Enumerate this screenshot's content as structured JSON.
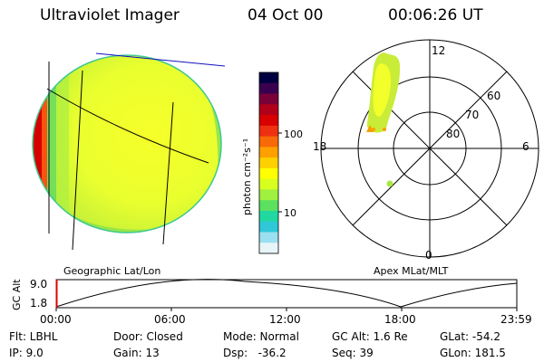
{
  "header": {
    "title": "Ultraviolet Imager",
    "date": "04 Oct 00",
    "time": "00:06:26 UT"
  },
  "colorbar": {
    "label": "photon cm⁻²s⁻¹",
    "ticks": [
      "100",
      "10"
    ],
    "colors": [
      "#000040",
      "#3a0050",
      "#7a003a",
      "#b0001a",
      "#d80000",
      "#ee3010",
      "#f86a08",
      "#ffa000",
      "#ffd000",
      "#ffff00",
      "#d8ff20",
      "#a0f040",
      "#5ce060",
      "#20d8a0",
      "#30c8d8",
      "#9ae0f0",
      "#e8f4f8"
    ]
  },
  "globe_panel": {
    "caption": "Geographic Lat/Lon"
  },
  "polar_plot": {
    "caption": "Apex MLat/MLT",
    "mlt_labels": [
      "12",
      "18",
      "6",
      "0"
    ],
    "lat_labels": [
      "60",
      "70",
      "80"
    ]
  },
  "altitude_plot": {
    "ylabel": "GC Alt",
    "yticks": [
      "9.0",
      "1.8"
    ],
    "xticks": [
      "00:00",
      "06:00",
      "12:00",
      "18:00",
      "23:59"
    ]
  },
  "info": {
    "filter": "Flt: LBHL",
    "ip": "IP:  9.0",
    "door": "Door: Closed",
    "gain": "Gain: 13",
    "mode": "Mode: Normal",
    "dsp": "Dsp:   -36.2",
    "gc_alt": "GC Alt: 1.6 Re",
    "seq": "Seq: 39",
    "glat": "GLat: -54.2",
    "glon": "GLon: 181.5"
  }
}
